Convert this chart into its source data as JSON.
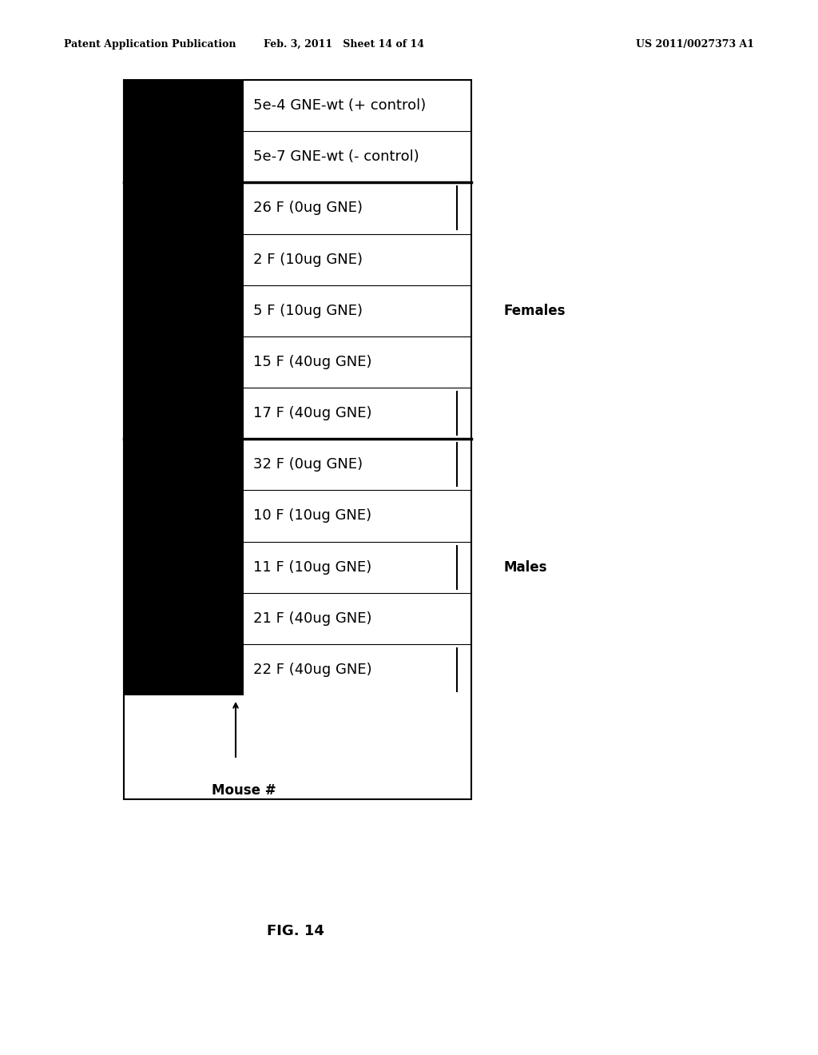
{
  "header_left": "Patent Application Publication",
  "header_mid": "Feb. 3, 2011   Sheet 14 of 14",
  "header_right": "US 2011/0027373 A1",
  "figure_label": "FIG. 14",
  "mouse_label": "Mouse #",
  "rows": [
    {
      "label": "5e-4 GNE-wt (+ control)",
      "has_right_tick": false,
      "section": "control"
    },
    {
      "label": "5e-7 GNE-wt (- control)",
      "has_right_tick": false,
      "section": "control"
    },
    {
      "label": "26 F (0ug GNE)",
      "has_right_tick": true,
      "section": "females"
    },
    {
      "label": "2 F (10ug GNE)",
      "has_right_tick": false,
      "section": "females"
    },
    {
      "label": "5 F (10ug GNE)",
      "has_right_tick": false,
      "section": "females"
    },
    {
      "label": "15 F (40ug GNE)",
      "has_right_tick": false,
      "section": "females"
    },
    {
      "label": "17 F (40ug GNE)",
      "has_right_tick": true,
      "section": "females"
    },
    {
      "label": "32 F (0ug GNE)",
      "has_right_tick": true,
      "section": "males"
    },
    {
      "label": "10 F (10ug GNE)",
      "has_right_tick": false,
      "section": "males"
    },
    {
      "label": "11 F (10ug GNE)",
      "has_right_tick": true,
      "section": "males"
    },
    {
      "label": "21 F (40ug GNE)",
      "has_right_tick": false,
      "section": "males"
    },
    {
      "label": "22 F (40ug GNE)",
      "has_right_tick": true,
      "section": "males"
    }
  ],
  "females_label": "Females",
  "males_label": "Males",
  "background_color": "#ffffff",
  "header_fontsize": 9,
  "text_fontsize": 13,
  "label_fontsize": 12,
  "fig_label_fontsize": 13
}
